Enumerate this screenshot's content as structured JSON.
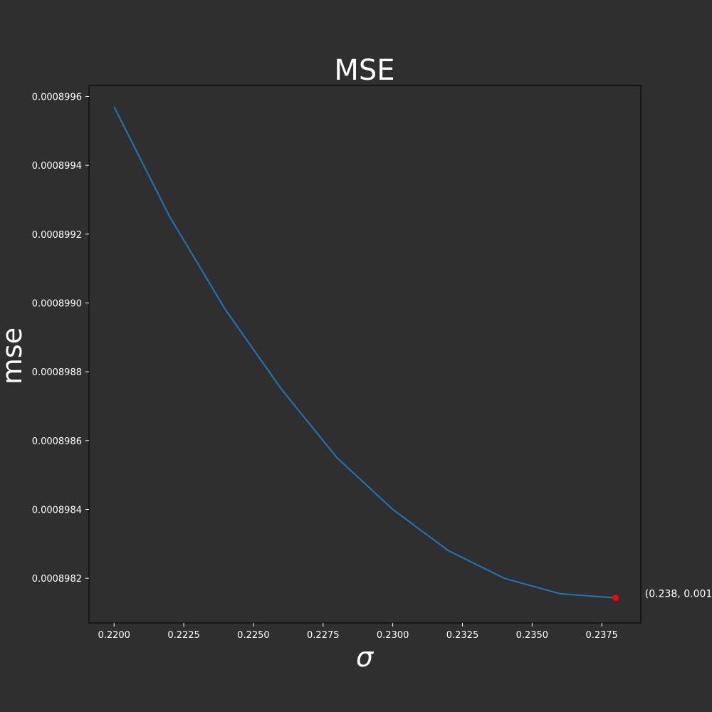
{
  "chart_data": {
    "type": "line",
    "title": "MSE",
    "xlabel": "σ",
    "ylabel": "mse",
    "x": [
      0.22,
      0.222,
      0.224,
      0.226,
      0.228,
      0.23,
      0.232,
      0.234,
      0.236,
      0.238
    ],
    "series": [
      {
        "color": "#1f77b4",
        "values": [
          0.00089957,
          0.00089925,
          0.00089898,
          0.00089875,
          0.00089855,
          0.0008984,
          0.00089828,
          0.0008982,
          0.000898155,
          0.000898143
        ]
      }
    ],
    "xlim": [
      0.2191,
      0.2389
    ],
    "ylim": [
      0.00089807,
      0.000899632
    ],
    "xticks": [
      0.22,
      0.2225,
      0.225,
      0.2275,
      0.23,
      0.2325,
      0.235,
      0.2375
    ],
    "xtick_labels": [
      "0.2200",
      "0.2225",
      "0.2250",
      "0.2275",
      "0.2300",
      "0.2325",
      "0.2350",
      "0.2375"
    ],
    "yticks": [
      0.0008982,
      0.0008984,
      0.0008986,
      0.0008988,
      0.000899,
      0.0008992,
      0.0008994,
      0.0008996
    ],
    "ytick_labels": [
      "0.0008982",
      "0.0008984",
      "0.0008986",
      "0.0008988",
      "0.0008990",
      "0.0008992",
      "0.0008994",
      "0.0008996"
    ],
    "grid": false,
    "highlight_point": {
      "x": 0.238,
      "y": 0.000898143,
      "color": "#ff0000",
      "label": "(0.238, 0.001"
    },
    "colors": {
      "background": "#2f2f2f",
      "axes_edge": "#000000",
      "text": "#ffffff"
    }
  }
}
